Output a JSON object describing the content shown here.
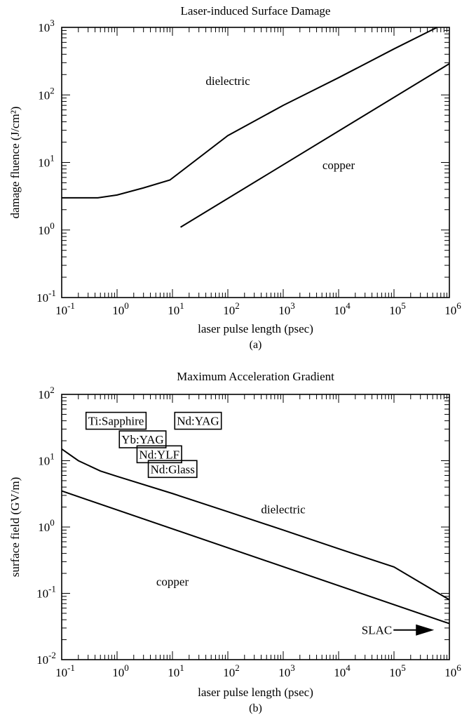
{
  "chart_data": [
    {
      "type": "line",
      "title": "Laser-induced Surface Damage",
      "xlabel": "laser pulse length (psec)",
      "ylabel": "damage fluence (J/cm²)",
      "caption": "(a)",
      "xscale": "log",
      "yscale": "log",
      "xlim": [
        0.1,
        1000000
      ],
      "ylim": [
        0.1,
        1000
      ],
      "x_ticks": [
        {
          "value": 0.1,
          "base": "10",
          "exp": "-1"
        },
        {
          "value": 1,
          "base": "10",
          "exp": "0"
        },
        {
          "value": 10,
          "base": "10",
          "exp": "1"
        },
        {
          "value": 100,
          "base": "10",
          "exp": "2"
        },
        {
          "value": 1000,
          "base": "10",
          "exp": "3"
        },
        {
          "value": 10000,
          "base": "10",
          "exp": "4"
        },
        {
          "value": 100000,
          "base": "10",
          "exp": "5"
        },
        {
          "value": 1000000,
          "base": "10",
          "exp": "6"
        }
      ],
      "y_ticks": [
        {
          "value": 0.1,
          "base": "10",
          "exp": "-1"
        },
        {
          "value": 1,
          "base": "10",
          "exp": "0"
        },
        {
          "value": 10,
          "base": "10",
          "exp": "1"
        },
        {
          "value": 100,
          "base": "10",
          "exp": "2"
        },
        {
          "value": 1000,
          "base": "10",
          "exp": "3"
        }
      ],
      "series": [
        {
          "label": "dielectric",
          "points": [
            [
              0.1,
              3.0
            ],
            [
              0.45,
              3.0
            ],
            [
              1,
              3.3
            ],
            [
              3,
              4.2
            ],
            [
              9,
              5.5
            ],
            [
              100,
              25
            ],
            [
              1000,
              70
            ],
            [
              10000,
              180
            ],
            [
              100000,
              480
            ],
            [
              600000,
              1000
            ]
          ],
          "label_at": [
            100,
            140
          ]
        },
        {
          "label": "copper",
          "points": [
            [
              14,
              1.1
            ],
            [
              1000000,
              290
            ]
          ],
          "label_at": [
            10000,
            8
          ]
        }
      ]
    },
    {
      "type": "line",
      "title": "Maximum Acceleration Gradient",
      "xlabel": "laser pulse length (psec)",
      "ylabel": "surface field (GV/m)",
      "caption": "(b)",
      "xscale": "log",
      "yscale": "log",
      "xlim": [
        0.1,
        1000000
      ],
      "ylim": [
        0.01,
        100
      ],
      "x_ticks": [
        {
          "value": 0.1,
          "base": "10",
          "exp": "-1"
        },
        {
          "value": 1,
          "base": "10",
          "exp": "0"
        },
        {
          "value": 10,
          "base": "10",
          "exp": "1"
        },
        {
          "value": 100,
          "base": "10",
          "exp": "2"
        },
        {
          "value": 1000,
          "base": "10",
          "exp": "3"
        },
        {
          "value": 10000,
          "base": "10",
          "exp": "4"
        },
        {
          "value": 100000,
          "base": "10",
          "exp": "5"
        },
        {
          "value": 1000000,
          "base": "10",
          "exp": "6"
        }
      ],
      "y_ticks": [
        {
          "value": 0.01,
          "base": "10",
          "exp": "-2"
        },
        {
          "value": 0.1,
          "base": "10",
          "exp": "-1"
        },
        {
          "value": 1,
          "base": "10",
          "exp": "0"
        },
        {
          "value": 10,
          "base": "10",
          "exp": "1"
        },
        {
          "value": 100,
          "base": "10",
          "exp": "2"
        }
      ],
      "series": [
        {
          "label": "dielectric",
          "points": [
            [
              0.1,
              15
            ],
            [
              0.2,
              10
            ],
            [
              0.5,
              7
            ],
            [
              1,
              5.8
            ],
            [
              10,
              3.2
            ],
            [
              100,
              1.7
            ],
            [
              1000,
              0.9
            ],
            [
              10000,
              0.47
            ],
            [
              100000,
              0.25
            ],
            [
              1000000,
              0.08
            ]
          ],
          "label_at": [
            1000,
            1.6
          ]
        },
        {
          "label": "copper",
          "points": [
            [
              0.1,
              3.5
            ],
            [
              1000000,
              0.035
            ]
          ],
          "label_at": [
            10,
            0.13
          ]
        }
      ],
      "lasers": [
        {
          "name": "Ti:Sapphire",
          "x": 0.3,
          "y": 40
        },
        {
          "name": "Nd:YAG",
          "x": 12,
          "y": 40
        },
        {
          "name": "Yb:YAG",
          "x": 1.2,
          "y": 21
        },
        {
          "name": "Nd:YLF",
          "x": 2.5,
          "y": 12.5
        },
        {
          "name": "Nd:Glass",
          "x": 4,
          "y": 7.5
        }
      ],
      "annotation": {
        "text": "SLAC",
        "x": 500000,
        "y": 0.028
      }
    }
  ]
}
